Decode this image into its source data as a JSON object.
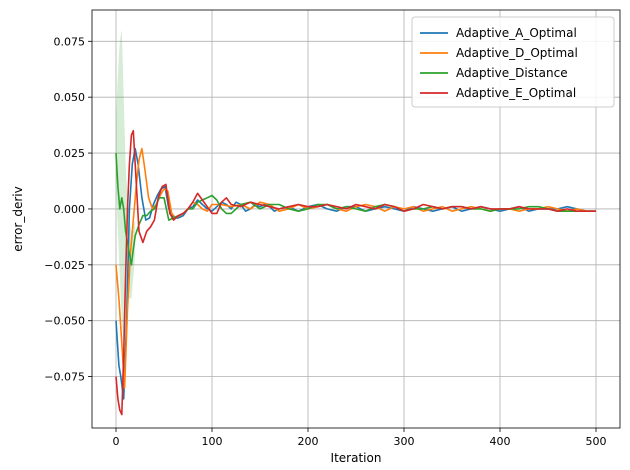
{
  "chart_data": {
    "type": "line",
    "title": "",
    "xlabel": "Iteration",
    "ylabel": "error_deriv",
    "xlim": [
      -25,
      525
    ],
    "ylim": [
      -0.098,
      0.089
    ],
    "xticks": [
      0,
      100,
      200,
      300,
      400,
      500
    ],
    "xtick_labels": [
      "0",
      "100",
      "200",
      "300",
      "400",
      "500"
    ],
    "yticks": [
      -0.075,
      -0.05,
      -0.025,
      0.0,
      0.025,
      0.05,
      0.075
    ],
    "ytick_labels": [
      "−0.075",
      "−0.050",
      "−0.025",
      "0.000",
      "0.025",
      "0.050",
      "0.075"
    ],
    "grid": true,
    "legend_position": "upper right",
    "series": [
      {
        "name": "Adaptive_A_Optimal",
        "color": "#1f77b4",
        "x": [
          0,
          3,
          5,
          8,
          11,
          14,
          17,
          20,
          23,
          27,
          31,
          35,
          39,
          43,
          47,
          51,
          55,
          60,
          65,
          70,
          75,
          80,
          85,
          90,
          95,
          100,
          105,
          110,
          115,
          120,
          125,
          130,
          135,
          140,
          145,
          150,
          155,
          160,
          165,
          170,
          180,
          190,
          200,
          210,
          220,
          230,
          240,
          250,
          260,
          270,
          280,
          290,
          300,
          310,
          320,
          330,
          340,
          350,
          360,
          370,
          380,
          390,
          400,
          410,
          420,
          430,
          440,
          450,
          460,
          470,
          480,
          490,
          500
        ],
        "y": [
          -0.05,
          -0.07,
          -0.075,
          -0.085,
          -0.05,
          0.0,
          0.02,
          0.027,
          0.02,
          0.005,
          -0.005,
          -0.004,
          0.002,
          0.006,
          0.009,
          0.01,
          0.0,
          -0.004,
          -0.004,
          -0.003,
          0.0,
          0.001,
          0.004,
          0.002,
          0.0,
          -0.001,
          0.001,
          0.003,
          0.002,
          0.0,
          0.003,
          0.002,
          -0.001,
          0.0,
          0.002,
          0.001,
          0.002,
          0.001,
          -0.001,
          0.0,
          0.001,
          -0.001,
          0.001,
          0.002,
          0.0,
          -0.001,
          0.001,
          0.001,
          -0.001,
          0.0,
          0.001,
          0.0,
          -0.001,
          0.001,
          0.0,
          -0.001,
          0.0,
          0.001,
          -0.001,
          0.0,
          0.001,
          0.0,
          -0.001,
          0.0,
          0.001,
          -0.001,
          0.0,
          0.0,
          0.0,
          0.001,
          0.0,
          -0.001,
          -0.001
        ]
      },
      {
        "name": "Adaptive_D_Optimal",
        "color": "#ff7f0e",
        "x": [
          0,
          3,
          6,
          9,
          12,
          15,
          18,
          21,
          24,
          27,
          30,
          34,
          38,
          42,
          46,
          50,
          54,
          58,
          62,
          66,
          70,
          75,
          80,
          85,
          90,
          95,
          100,
          110,
          120,
          130,
          140,
          150,
          160,
          170,
          180,
          190,
          200,
          210,
          220,
          230,
          240,
          250,
          260,
          270,
          280,
          290,
          300,
          310,
          320,
          330,
          340,
          350,
          360,
          370,
          380,
          390,
          400,
          410,
          420,
          430,
          440,
          450,
          460,
          470,
          480,
          490,
          500
        ],
        "y": [
          -0.025,
          -0.04,
          -0.06,
          -0.08,
          -0.045,
          -0.02,
          -0.005,
          0.01,
          0.022,
          0.027,
          0.018,
          0.005,
          0.0,
          0.002,
          0.006,
          0.009,
          0.008,
          -0.002,
          -0.004,
          -0.003,
          -0.002,
          0.0,
          0.003,
          0.002,
          0.0,
          -0.001,
          0.002,
          0.002,
          0.001,
          0.002,
          0.0,
          0.003,
          0.002,
          -0.001,
          0.0,
          0.002,
          0.0,
          0.001,
          0.002,
          0.0,
          -0.001,
          0.001,
          0.002,
          0.001,
          -0.001,
          0.001,
          0.0,
          0.001,
          -0.001,
          0.0,
          0.001,
          -0.001,
          0.0,
          0.001,
          0.0,
          -0.001,
          0.0,
          0.0,
          -0.001,
          0.0,
          0.0,
          0.001,
          0.0,
          -0.001,
          0.0,
          -0.001,
          -0.001
        ]
      },
      {
        "name": "Adaptive_Distance",
        "color": "#2ca02c",
        "x": [
          0,
          2,
          4,
          6,
          8,
          10,
          12,
          14,
          16,
          18,
          20,
          24,
          28,
          32,
          36,
          40,
          45,
          50,
          55,
          60,
          65,
          70,
          75,
          80,
          85,
          90,
          95,
          100,
          105,
          110,
          115,
          120,
          130,
          140,
          150,
          160,
          170,
          180,
          190,
          200,
          210,
          220,
          230,
          240,
          250,
          260,
          270,
          280,
          290,
          300,
          310,
          320,
          330,
          340,
          350,
          360,
          370,
          380,
          390,
          400,
          410,
          420,
          430,
          440,
          450,
          460,
          470,
          480,
          490,
          500
        ],
        "y": [
          0.025,
          0.01,
          0.0,
          0.005,
          0.0,
          -0.01,
          -0.015,
          -0.02,
          -0.025,
          -0.018,
          -0.012,
          -0.007,
          -0.003,
          -0.003,
          -0.001,
          0.0,
          0.005,
          0.005,
          -0.005,
          -0.004,
          -0.003,
          -0.002,
          0.0,
          0.0,
          0.003,
          0.004,
          0.005,
          0.006,
          0.004,
          0.0,
          -0.002,
          -0.002,
          0.002,
          0.003,
          0.0,
          0.002,
          0.002,
          0.0,
          -0.001,
          0.0,
          0.002,
          0.002,
          0.0,
          0.001,
          0.0,
          -0.001,
          0.001,
          0.002,
          0.001,
          -0.001,
          0.0,
          0.0,
          0.001,
          0.0,
          0.001,
          0.001,
          0.0,
          0.0,
          -0.001,
          0.0,
          0.0,
          0.0,
          0.001,
          0.001,
          0.0,
          -0.001,
          -0.001,
          -0.001,
          -0.001,
          -0.001
        ]
      },
      {
        "name": "Adaptive_E_Optimal",
        "color": "#d62728",
        "x": [
          0,
          2,
          4,
          6,
          8,
          10,
          12,
          14,
          16,
          18,
          20,
          24,
          28,
          32,
          36,
          40,
          44,
          48,
          52,
          56,
          60,
          65,
          70,
          75,
          80,
          85,
          90,
          95,
          100,
          105,
          110,
          115,
          120,
          130,
          140,
          150,
          160,
          170,
          180,
          190,
          200,
          210,
          220,
          230,
          240,
          250,
          260,
          270,
          280,
          290,
          300,
          310,
          320,
          330,
          340,
          350,
          360,
          370,
          380,
          390,
          400,
          410,
          420,
          430,
          440,
          450,
          460,
          470,
          480,
          490,
          500
        ],
        "y": [
          -0.075,
          -0.085,
          -0.09,
          -0.092,
          -0.065,
          -0.03,
          0.0,
          0.02,
          0.033,
          0.035,
          0.02,
          -0.01,
          -0.015,
          -0.01,
          -0.008,
          -0.005,
          0.005,
          0.01,
          0.011,
          -0.002,
          -0.005,
          -0.003,
          -0.002,
          0.0,
          0.003,
          0.007,
          0.004,
          0.001,
          -0.002,
          -0.002,
          0.003,
          0.005,
          0.002,
          0.001,
          0.003,
          0.002,
          0.001,
          0.0,
          0.001,
          0.002,
          0.001,
          0.001,
          0.002,
          0.001,
          0.0,
          0.002,
          0.001,
          0.0,
          0.002,
          0.001,
          -0.001,
          0.0,
          0.002,
          0.001,
          0.0,
          0.001,
          0.001,
          0.0,
          0.001,
          0.0,
          0.0,
          0.0,
          0.001,
          0.0,
          0.0,
          0.0,
          -0.001,
          0.0,
          -0.001,
          -0.001,
          -0.001
        ]
      }
    ],
    "spread_band": {
      "color": "#2ca02c",
      "x": [
        0,
        2,
        4,
        6,
        8,
        10,
        12,
        14,
        16,
        18,
        20
      ],
      "upper": [
        0.04,
        0.06,
        0.075,
        0.08,
        0.05,
        0.02,
        0.005,
        -0.005,
        -0.01,
        -0.008,
        -0.005
      ],
      "lower": [
        0.01,
        -0.01,
        -0.03,
        -0.05,
        -0.06,
        -0.05,
        -0.04,
        -0.04,
        -0.04,
        -0.03,
        -0.02
      ]
    }
  }
}
